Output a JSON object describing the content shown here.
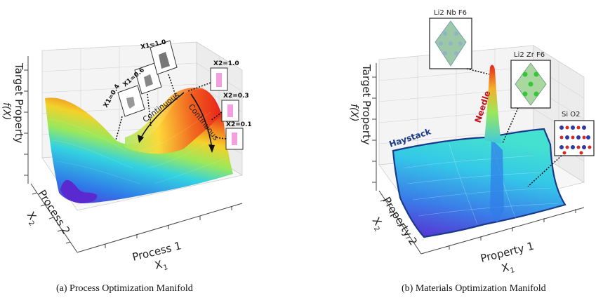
{
  "panel_a": {
    "caption": "(a) Process Optimization Manifold",
    "z_label": "Target Property",
    "z_sub": "f(X)",
    "y_label": "Process 2",
    "y_sub": "X",
    "y_idx": "2",
    "x_label": "Process 1",
    "x_sub": "X",
    "x_idx": "1",
    "arrow_label_1": "Continuous",
    "arrow_label_2": "Continuous",
    "insets_x1": [
      "X1=0.4",
      "X1=0.6",
      "X1=1.0"
    ],
    "insets_x2": [
      "X2=1.0",
      "X2=0.3",
      "X2=0.1"
    ]
  },
  "panel_b": {
    "caption": "(b) Materials Optimization Manifold",
    "z_label": "Target Property",
    "z_sub": "f(X)",
    "y_label": "Property 2",
    "y_sub": "X",
    "y_idx": "2",
    "x_label": "Property 1",
    "x_sub": "X",
    "x_idx": "1",
    "haystack_label": "Haystack",
    "needle_label": "Needle",
    "materials": [
      "Li2 Nb F6",
      "Li2 Zr F6",
      "Si O2"
    ]
  },
  "colors": {
    "surface_low": "#5b2bd6",
    "surface_mid": "#33d3e0",
    "surface_high": "#e8251a",
    "haystack": "#1a3a8c",
    "needle": "#c4121a"
  }
}
